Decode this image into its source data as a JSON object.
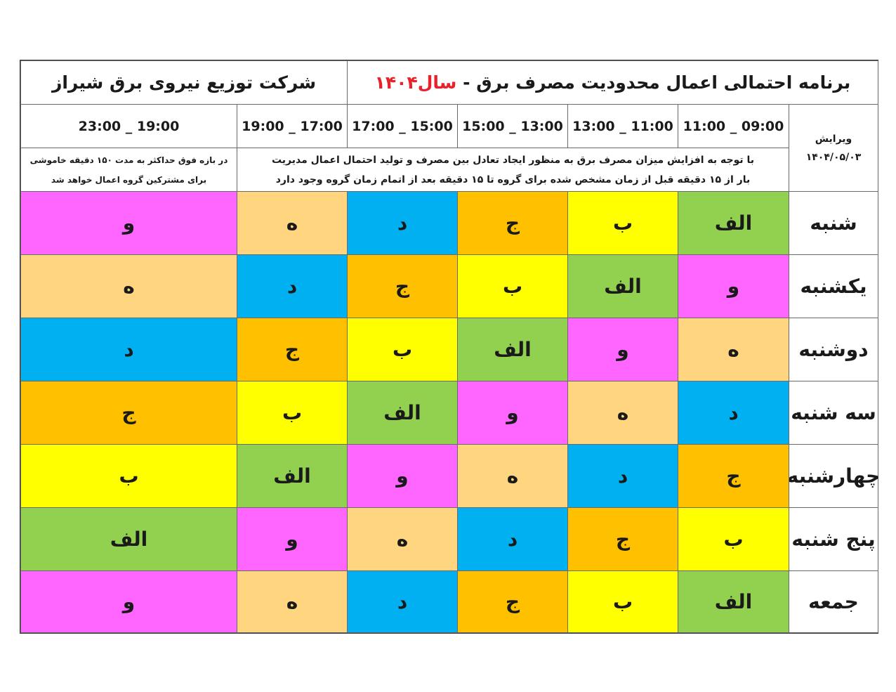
{
  "header": {
    "title_main": "برنامه احتمالی اعمال محدودیت مصرف برق  -",
    "title_year": "سال۱۴۰۴",
    "company": "شرکت توزیع نیروی برق شیراز"
  },
  "edition": {
    "label": "ویرایش",
    "date": "۱۴۰۴/۰۵/۰۳"
  },
  "time_slots": [
    "11:00 _ 09:00",
    "13:00 _ 11:00",
    "15:00 _ 13:00",
    "17:00 _ 15:00",
    "19:00 _ 17:00",
    "23:00 _ 19:00"
  ],
  "notes": {
    "main_line1": "با توجه به افزایش میزان مصرف برق به منظور ایجاد تعادل بین مصرف و تولید احتمال اعمال مدیریت",
    "main_line2": "بار از ۱۵ دقیقه قبل از زمان مشخص شده برای گروه  تا ۱۵ دقیقه بعد از اتمام زمان گروه وجود دارد",
    "last_line1": "در بازه فوق حداکثر به مدت ۱۵۰ دقیقه خاموشی",
    "last_line2": "برای مشترکین گروه اعمال خواهد شد"
  },
  "group_colors": {
    "الف": "#92d050",
    "ب": "#ffff00",
    "ج": "#ffc000",
    "د": "#00b0f0",
    "ه": "#ffd580",
    "و": "#ff66ff"
  },
  "schedule": [
    {
      "day": "شنبه",
      "groups": [
        "الف",
        "ب",
        "ج",
        "د",
        "ه",
        "و"
      ]
    },
    {
      "day": "یکشنبه",
      "groups": [
        "و",
        "الف",
        "ب",
        "ج",
        "د",
        "ه"
      ]
    },
    {
      "day": "دوشنبه",
      "groups": [
        "ه",
        "و",
        "الف",
        "ب",
        "ج",
        "د"
      ]
    },
    {
      "day": "سه شنبه",
      "groups": [
        "د",
        "ه",
        "و",
        "الف",
        "ب",
        "ج"
      ]
    },
    {
      "day": "چهارشنبه",
      "groups": [
        "ج",
        "د",
        "ه",
        "و",
        "الف",
        "ب"
      ]
    },
    {
      "day": "پنج شنبه",
      "groups": [
        "ب",
        "ج",
        "د",
        "ه",
        "و",
        "الف"
      ]
    },
    {
      "day": "جمعه",
      "groups": [
        "الف",
        "ب",
        "ج",
        "د",
        "ه",
        "و"
      ]
    }
  ]
}
